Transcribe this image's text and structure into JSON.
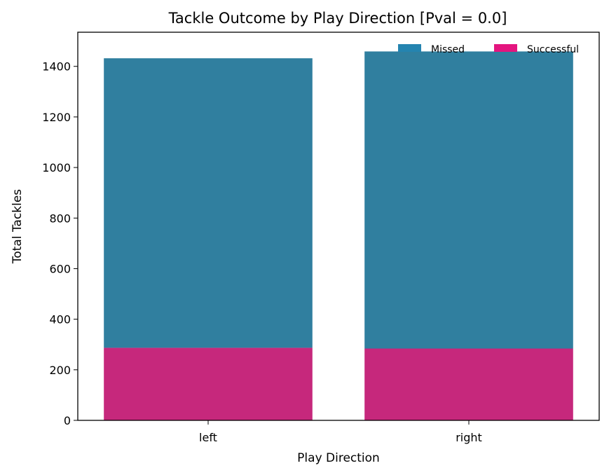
{
  "chart_data": {
    "type": "bar",
    "stacked": true,
    "title": "Tackle Outcome by Play Direction [Pval = 0.0]",
    "xlabel": "Play Direction",
    "ylabel": "Total Tackles",
    "categories": [
      "left",
      "right"
    ],
    "series": [
      {
        "name": "Successful",
        "values": [
          287,
          284
        ],
        "color": "#c6287c"
      },
      {
        "name": "Missed",
        "values": [
          1145,
          1175
        ],
        "color": "#307f9f"
      }
    ],
    "ylim": [
      0,
      1535
    ],
    "yticks": [
      0,
      200,
      400,
      600,
      800,
      1000,
      1200,
      1400
    ],
    "legend": {
      "placement": "top-right",
      "items": [
        {
          "label": "Missed",
          "color": "#2484b0"
        },
        {
          "label": "Successful",
          "color": "#e4157f"
        }
      ]
    },
    "grid": false
  }
}
